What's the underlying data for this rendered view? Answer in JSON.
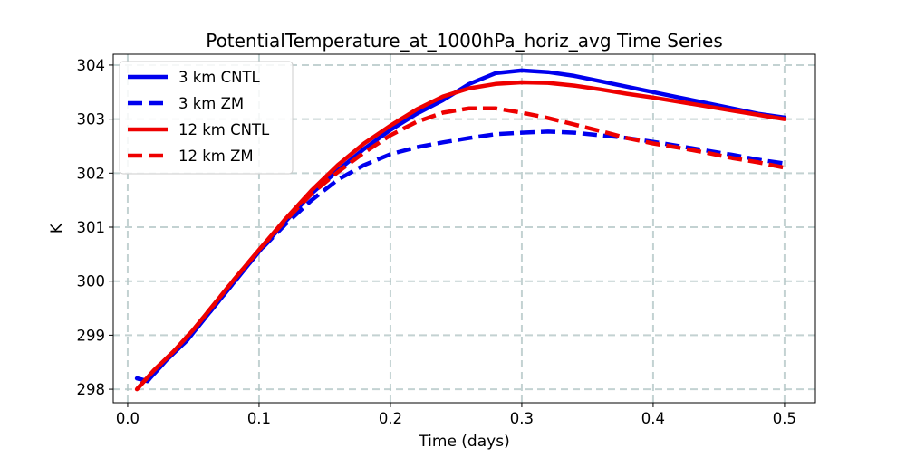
{
  "chart_data": {
    "type": "line",
    "title": "PotentialTemperature_at_1000hPa_horiz_avg Time Series",
    "xlabel": "Time (days)",
    "ylabel": "K",
    "xlim": [
      -0.011,
      0.5235
    ],
    "ylim": [
      297.75,
      304.2
    ],
    "xticks": [
      0.0,
      0.1,
      0.2,
      0.3,
      0.4,
      0.5
    ],
    "xtick_labels": [
      "0.0",
      "0.1",
      "0.2",
      "0.3",
      "0.4",
      "0.5"
    ],
    "yticks": [
      298,
      299,
      300,
      301,
      302,
      303,
      304
    ],
    "ytick_labels": [
      "298",
      "299",
      "300",
      "301",
      "302",
      "303",
      "304"
    ],
    "grid": true,
    "legend_position": "top-left",
    "series": [
      {
        "name": "3 km CNTL",
        "color": "#0000ee",
        "style": "solid",
        "x": [
          0.007,
          0.015,
          0.03,
          0.045,
          0.06,
          0.08,
          0.1,
          0.12,
          0.14,
          0.16,
          0.18,
          0.2,
          0.22,
          0.24,
          0.26,
          0.28,
          0.3,
          0.32,
          0.34,
          0.36,
          0.38,
          0.4,
          0.42,
          0.44,
          0.46,
          0.48,
          0.5
        ],
        "y": [
          298.2,
          298.15,
          298.55,
          298.9,
          299.35,
          299.95,
          300.55,
          301.1,
          301.62,
          302.05,
          302.45,
          302.8,
          303.1,
          303.35,
          303.65,
          303.85,
          303.9,
          303.87,
          303.8,
          303.7,
          303.6,
          303.5,
          303.4,
          303.3,
          303.2,
          303.1,
          303.03
        ]
      },
      {
        "name": "3 km ZM",
        "color": "#0000ee",
        "style": "dashed",
        "x": [
          0.007,
          0.015,
          0.03,
          0.045,
          0.06,
          0.08,
          0.1,
          0.12,
          0.14,
          0.16,
          0.18,
          0.2,
          0.22,
          0.24,
          0.26,
          0.28,
          0.3,
          0.32,
          0.34,
          0.36,
          0.38,
          0.4,
          0.42,
          0.44,
          0.46,
          0.48,
          0.5
        ],
        "y": [
          298.2,
          298.15,
          298.55,
          298.9,
          299.35,
          299.95,
          300.55,
          301.05,
          301.5,
          301.88,
          302.15,
          302.35,
          302.48,
          302.57,
          302.65,
          302.72,
          302.75,
          302.77,
          302.75,
          302.7,
          302.65,
          302.58,
          302.5,
          302.42,
          302.34,
          302.25,
          302.18
        ]
      },
      {
        "name": "12 km CNTL",
        "color": "#ee0000",
        "style": "solid",
        "x": [
          0.007,
          0.02,
          0.035,
          0.05,
          0.065,
          0.08,
          0.1,
          0.12,
          0.14,
          0.16,
          0.18,
          0.2,
          0.22,
          0.24,
          0.26,
          0.28,
          0.3,
          0.32,
          0.34,
          0.36,
          0.38,
          0.4,
          0.42,
          0.44,
          0.46,
          0.48,
          0.5
        ],
        "y": [
          298.0,
          298.35,
          298.7,
          299.1,
          299.55,
          300.0,
          300.58,
          301.15,
          301.68,
          302.15,
          302.55,
          302.88,
          303.18,
          303.42,
          303.57,
          303.65,
          303.68,
          303.67,
          303.62,
          303.55,
          303.47,
          303.4,
          303.32,
          303.24,
          303.16,
          303.08,
          303.0
        ]
      },
      {
        "name": "12 km ZM",
        "color": "#ee0000",
        "style": "dashed",
        "x": [
          0.007,
          0.02,
          0.035,
          0.05,
          0.065,
          0.08,
          0.1,
          0.12,
          0.14,
          0.16,
          0.18,
          0.2,
          0.22,
          0.24,
          0.26,
          0.28,
          0.3,
          0.32,
          0.34,
          0.36,
          0.38,
          0.4,
          0.42,
          0.44,
          0.46,
          0.48,
          0.5
        ],
        "y": [
          298.0,
          298.35,
          298.7,
          299.1,
          299.55,
          300.0,
          300.58,
          301.12,
          301.62,
          302.02,
          302.38,
          302.7,
          302.95,
          303.12,
          303.2,
          303.2,
          303.12,
          303.02,
          302.9,
          302.78,
          302.65,
          302.55,
          302.47,
          302.38,
          302.28,
          302.2,
          302.1
        ]
      }
    ]
  }
}
